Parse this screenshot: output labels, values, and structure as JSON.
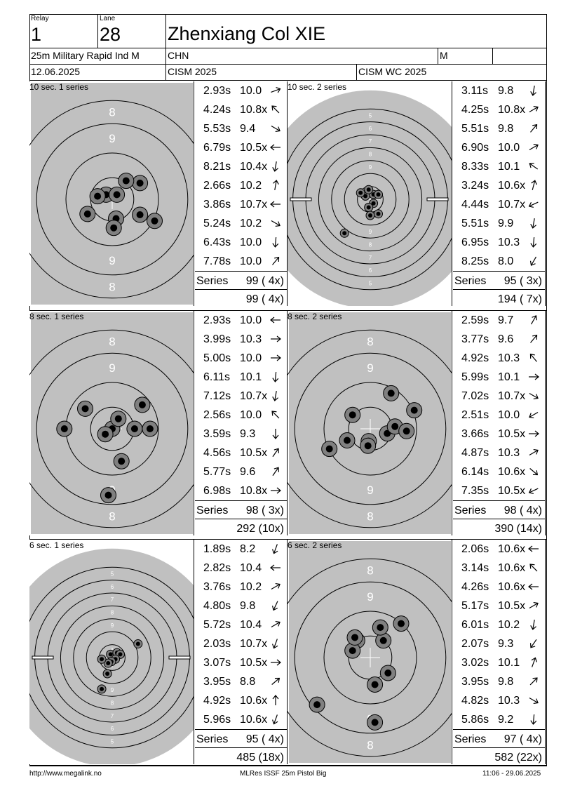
{
  "header": {
    "relay_caption": "Relay",
    "relay_value": "1",
    "lane_caption": "Lane",
    "lane_value": "28",
    "athlete_name": "Zhenxiang Col XIE",
    "event": "25m Military Rapid Ind M",
    "nation": "CHN",
    "gender": "M",
    "extra": "",
    "date": "12.06.2025",
    "competition": "CISM 2025",
    "championship": "CISM WC 2025"
  },
  "series_label": "Series",
  "panels": [
    {
      "label": "10 sec. 1 series",
      "ring_scale": "big",
      "shots": [
        {
          "time": "2.93s",
          "score": "10.0",
          "arrow": "←",
          "ang": -20
        },
        {
          "time": "4.24s",
          "score": "10.8x",
          "arrow": "↖",
          "ang": -135
        },
        {
          "time": "5.53s",
          "score": "9.4",
          "arrow": "↘",
          "ang": 30
        },
        {
          "time": "6.79s",
          "score": "10.5x",
          "arrow": "←",
          "ang": 180
        },
        {
          "time": "8.21s",
          "score": "10.4x",
          "arrow": "↓",
          "ang": 100
        },
        {
          "time": "2.66s",
          "score": "10.2",
          "arrow": "↑",
          "ang": -80
        },
        {
          "time": "3.86s",
          "score": "10.7x",
          "arrow": "←",
          "ang": 180
        },
        {
          "time": "5.24s",
          "score": "10.2",
          "arrow": "↘",
          "ang": 30
        },
        {
          "time": "6.43s",
          "score": "10.0",
          "arrow": "↓",
          "ang": 95
        },
        {
          "time": "7.78s",
          "score": "10.0",
          "arrow": "↗",
          "ang": -50
        }
      ],
      "series_total": "99 ( 4x)",
      "cumulative": "99 ( 4x)",
      "hits": [
        [
          -0.08,
          -0.06
        ],
        [
          0.06,
          -0.06
        ],
        [
          -0.19,
          -0.04
        ],
        [
          -0.32,
          0.19
        ],
        [
          0.05,
          0.25
        ],
        [
          0.36,
          0.2
        ],
        [
          0.55,
          0.28
        ],
        [
          0.02,
          0.37
        ],
        [
          0.36,
          -0.21
        ],
        [
          0.18,
          -0.24
        ]
      ]
    },
    {
      "label": "10 sec. 2 series",
      "ring_scale": "small",
      "shots": [
        {
          "time": "3.11s",
          "score": "9.8",
          "arrow": "↓",
          "ang": 100
        },
        {
          "time": "4.25s",
          "score": "10.8x",
          "arrow": "↗",
          "ang": -30
        },
        {
          "time": "5.51s",
          "score": "9.8",
          "arrow": "↗",
          "ang": -50
        },
        {
          "time": "6.90s",
          "score": "10.0",
          "arrow": "↗",
          "ang": -30
        },
        {
          "time": "8.33s",
          "score": "10.1",
          "arrow": "↖",
          "ang": -145
        },
        {
          "time": "3.24s",
          "score": "10.6x",
          "arrow": "↑",
          "ang": -75
        },
        {
          "time": "4.44s",
          "score": "10.7x",
          "arrow": "↙",
          "ang": 155
        },
        {
          "time": "5.51s",
          "score": "9.9",
          "arrow": "↓",
          "ang": 100
        },
        {
          "time": "6.95s",
          "score": "10.3",
          "arrow": "↓",
          "ang": 95
        },
        {
          "time": "8.25s",
          "score": "8.0",
          "arrow": "↙",
          "ang": 120
        }
      ],
      "series_total": "95 ( 3x)",
      "cumulative": "194 ( 7x)",
      "hits": [
        [
          -0.06,
          -0.04
        ],
        [
          0.04,
          -0.06
        ],
        [
          -0.02,
          -0.12
        ],
        [
          0.1,
          -0.06
        ],
        [
          0.04,
          0.05
        ],
        [
          -0.12,
          -0.08
        ],
        [
          -0.02,
          0.1
        ],
        [
          0.1,
          0.18
        ],
        [
          0.0,
          0.2
        ],
        [
          -0.32,
          0.42
        ]
      ]
    },
    {
      "label": "8 sec. 1 series",
      "ring_scale": "big",
      "shots": [
        {
          "time": "2.93s",
          "score": "10.0",
          "arrow": "←",
          "ang": 180
        },
        {
          "time": "3.99s",
          "score": "10.3",
          "arrow": "→",
          "ang": 0
        },
        {
          "time": "5.00s",
          "score": "10.0",
          "arrow": "→",
          "ang": 0
        },
        {
          "time": "6.11s",
          "score": "10.1",
          "arrow": "↓",
          "ang": 95
        },
        {
          "time": "7.12s",
          "score": "10.7x",
          "arrow": "↓",
          "ang": 100
        },
        {
          "time": "2.56s",
          "score": "10.0",
          "arrow": "↖",
          "ang": -135
        },
        {
          "time": "3.59s",
          "score": "9.3",
          "arrow": "↓",
          "ang": 90
        },
        {
          "time": "4.56s",
          "score": "10.5x",
          "arrow": "↗",
          "ang": -55
        },
        {
          "time": "5.77s",
          "score": "9.6",
          "arrow": "↗",
          "ang": -55
        },
        {
          "time": "6.98s",
          "score": "10.8x",
          "arrow": "→",
          "ang": 0
        }
      ],
      "series_total": "98 ( 3x)",
      "cumulative": "292 (10x)",
      "hits": [
        [
          0.0,
          0.0
        ],
        [
          0.08,
          -0.13
        ],
        [
          -0.09,
          0.07
        ],
        [
          0.29,
          0.0
        ],
        [
          0.49,
          0.0
        ],
        [
          -0.62,
          0.0
        ],
        [
          -0.35,
          -0.26
        ],
        [
          0.39,
          -0.31
        ],
        [
          0.12,
          0.42
        ],
        [
          -0.05,
          0.86
        ]
      ]
    },
    {
      "label": "8 sec. 2 series",
      "ring_scale": "big",
      "shots": [
        {
          "time": "2.59s",
          "score": "9.7",
          "arrow": "↗",
          "ang": -60
        },
        {
          "time": "3.77s",
          "score": "9.6",
          "arrow": "↗",
          "ang": -50
        },
        {
          "time": "4.92s",
          "score": "10.3",
          "arrow": "↖",
          "ang": -130
        },
        {
          "time": "5.99s",
          "score": "10.1",
          "arrow": "→",
          "ang": 0
        },
        {
          "time": "7.02s",
          "score": "10.7x",
          "arrow": "↘",
          "ang": 30
        },
        {
          "time": "2.51s",
          "score": "10.0",
          "arrow": "↙",
          "ang": 150
        },
        {
          "time": "3.66s",
          "score": "10.5x",
          "arrow": "→",
          "ang": 0
        },
        {
          "time": "4.87s",
          "score": "10.3",
          "arrow": "↗",
          "ang": -30
        },
        {
          "time": "6.14s",
          "score": "10.6x",
          "arrow": "↘",
          "ang": 40
        },
        {
          "time": "7.35s",
          "score": "10.5x",
          "arrow": "↙",
          "ang": 155
        }
      ],
      "series_total": "98 ( 4x)",
      "cumulative": "390 (14x)",
      "hits": [
        [
          0.22,
          0.06
        ],
        [
          0.32,
          -0.03
        ],
        [
          0.47,
          0.03
        ],
        [
          -0.02,
          0.16
        ],
        [
          -0.03,
          0.22
        ],
        [
          -0.3,
          0.15
        ],
        [
          -0.53,
          0.26
        ],
        [
          -0.23,
          -0.18
        ],
        [
          0.27,
          -0.46
        ],
        [
          0.57,
          -0.24
        ]
      ]
    },
    {
      "label": "6 sec. 1 series",
      "ring_scale": "small",
      "shots": [
        {
          "time": "1.89s",
          "score": "8.2",
          "arrow": "↓",
          "ang": 110
        },
        {
          "time": "2.82s",
          "score": "10.4",
          "arrow": "←",
          "ang": 180
        },
        {
          "time": "3.76s",
          "score": "10.2",
          "arrow": "↗",
          "ang": -30
        },
        {
          "time": "4.80s",
          "score": "9.8",
          "arrow": "↓",
          "ang": 115
        },
        {
          "time": "5.72s",
          "score": "10.4",
          "arrow": "↗",
          "ang": -30
        },
        {
          "time": "2.03s",
          "score": "10.7x",
          "arrow": "↓",
          "ang": 110
        },
        {
          "time": "3.07s",
          "score": "10.5x",
          "arrow": "→",
          "ang": 0
        },
        {
          "time": "3.95s",
          "score": "8.8",
          "arrow": "↗",
          "ang": -40
        },
        {
          "time": "4.92s",
          "score": "10.6x",
          "arrow": "↑",
          "ang": -90
        },
        {
          "time": "5.96s",
          "score": "10.6x",
          "arrow": "↓",
          "ang": 110
        }
      ],
      "series_total": "95 ( 4x)",
      "cumulative": "485 (18x)",
      "hits": [
        [
          -0.02,
          -0.04
        ],
        [
          0.06,
          -0.06
        ],
        [
          0.1,
          -0.04
        ],
        [
          0.04,
          0.02
        ],
        [
          -0.01,
          0.05
        ],
        [
          -0.05,
          0.07
        ],
        [
          -0.13,
          0.02
        ],
        [
          0.32,
          -0.17
        ],
        [
          -0.06,
          0.2
        ],
        [
          -0.13,
          0.39
        ]
      ]
    },
    {
      "label": "6 sec. 2 series",
      "ring_scale": "big",
      "shots": [
        {
          "time": "2.06s",
          "score": "10.6x",
          "arrow": "←",
          "ang": 180
        },
        {
          "time": "3.14s",
          "score": "10.6x",
          "arrow": "↖",
          "ang": -135
        },
        {
          "time": "4.26s",
          "score": "10.6x",
          "arrow": "←",
          "ang": 180
        },
        {
          "time": "5.17s",
          "score": "10.5x",
          "arrow": "↗",
          "ang": -30
        },
        {
          "time": "6.01s",
          "score": "10.2",
          "arrow": "↓",
          "ang": 100
        },
        {
          "time": "2.07s",
          "score": "9.3",
          "arrow": "↙",
          "ang": 125
        },
        {
          "time": "3.02s",
          "score": "10.1",
          "arrow": "↑",
          "ang": -70
        },
        {
          "time": "3.95s",
          "score": "9.8",
          "arrow": "↗",
          "ang": -45
        },
        {
          "time": "4.82s",
          "score": "10.3",
          "arrow": "↘",
          "ang": 30
        },
        {
          "time": "5.86s",
          "score": "9.2",
          "arrow": "↓",
          "ang": 95
        }
      ],
      "series_total": "97 ( 4x)",
      "cumulative": "582 (22x)",
      "hits": [
        [
          -0.17,
          -0.22
        ],
        [
          -0.23,
          -0.09
        ],
        [
          0.17,
          -0.22
        ],
        [
          0.13,
          -0.39
        ],
        [
          0.4,
          -0.44
        ],
        [
          0.23,
          0.2
        ],
        [
          0.06,
          0.35
        ],
        [
          -0.69,
          0.61
        ],
        [
          0.06,
          0.84
        ],
        [
          -0.2,
          -0.26
        ]
      ]
    }
  ],
  "footer": {
    "url": "http://www.megalink.no",
    "software": "MLRes ISSF 25m Pistol Big",
    "timestamp": "11:06 - 29.06.2025"
  },
  "colors": {
    "target_bg": "#c0c0c0",
    "ring": "#000000",
    "hit_outer": "#808080",
    "hit_inner": "#000000",
    "ring_number": "#ffffff"
  }
}
